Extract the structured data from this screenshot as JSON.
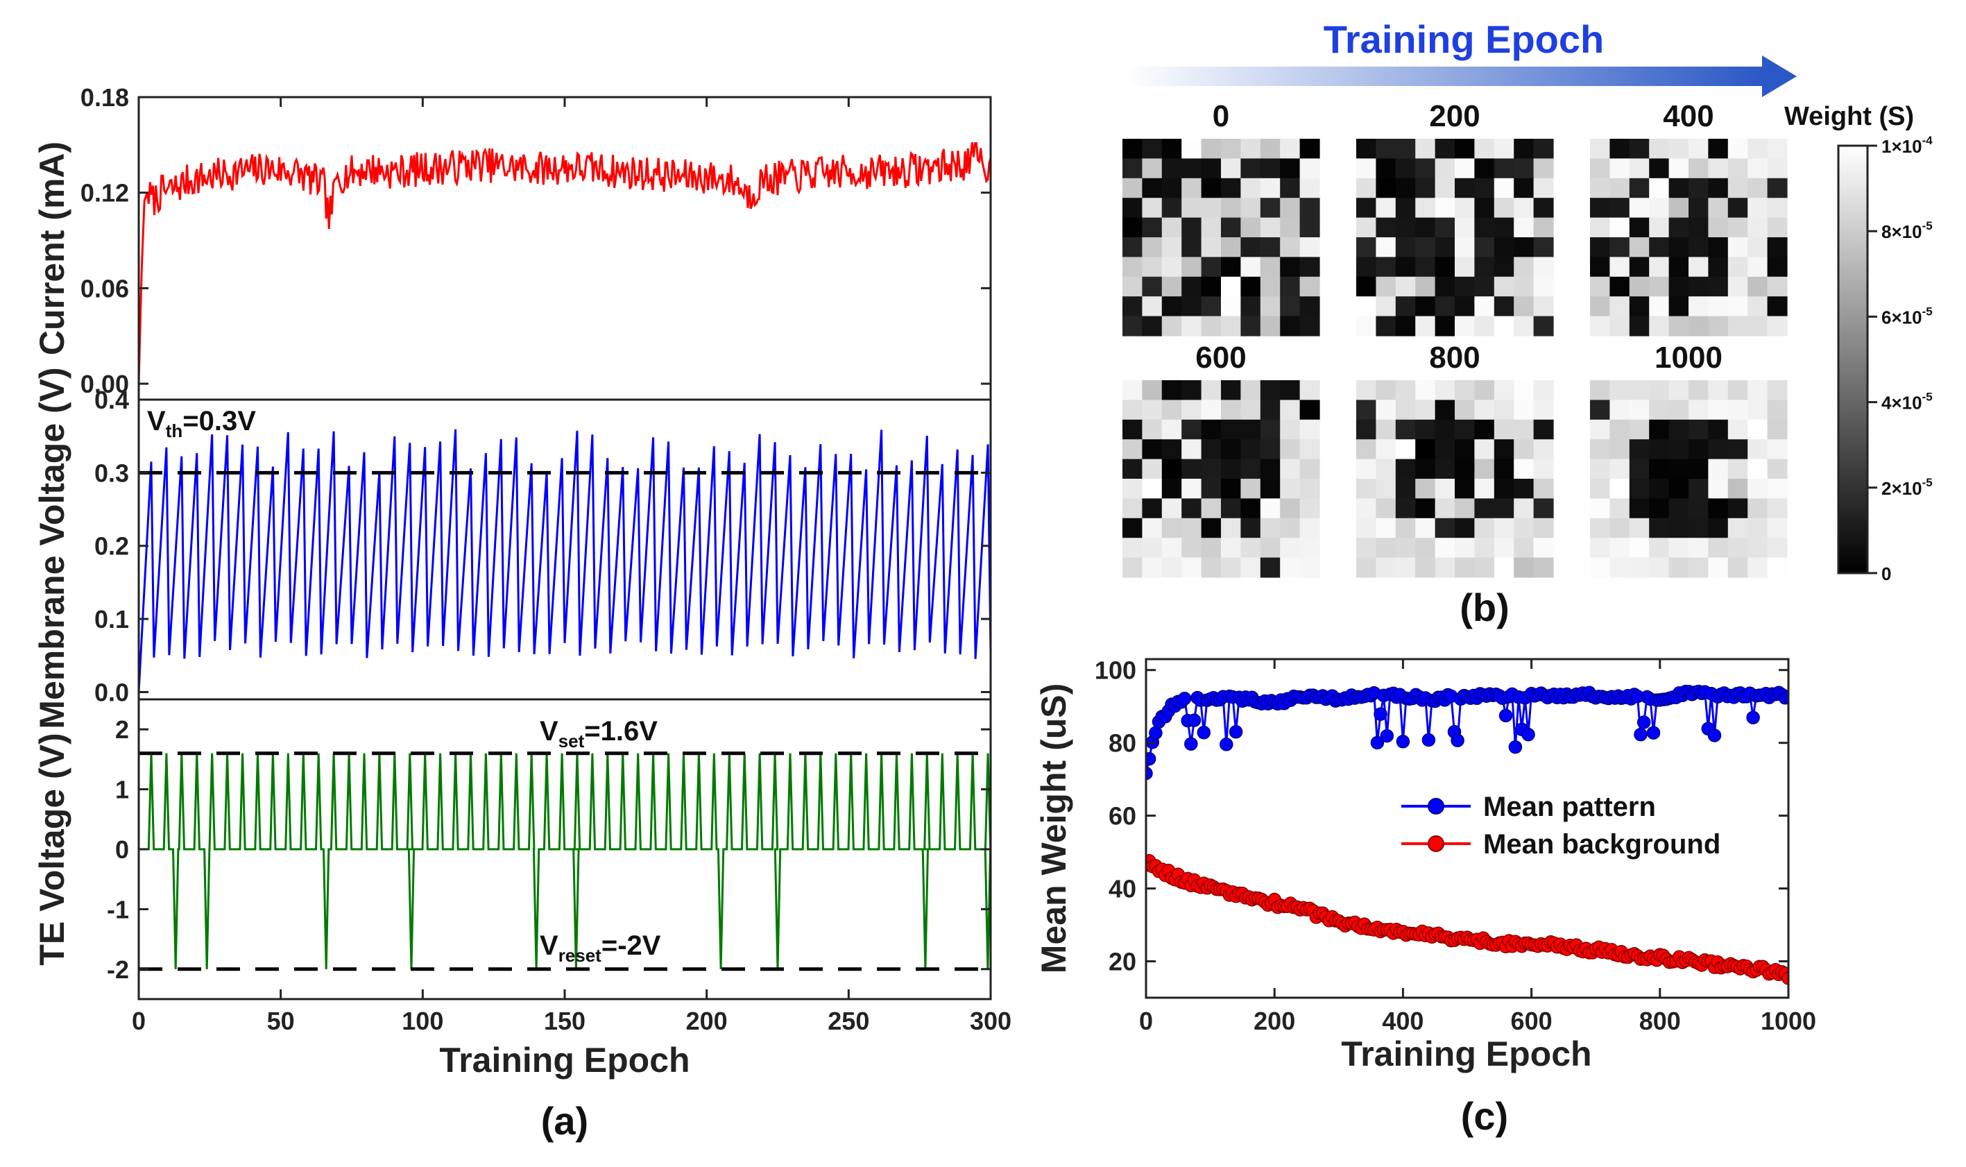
{
  "chart_data": [
    {
      "id": "a",
      "panel_label": "(a)",
      "type": "line",
      "title": "",
      "xlabel": "Training Epoch",
      "xlim": [
        0,
        300
      ],
      "xticks": [
        "0",
        "50",
        "100",
        "150",
        "200",
        "250",
        "300"
      ],
      "x_tick_values": [
        0,
        50,
        100,
        150,
        200,
        250,
        300
      ],
      "subplots": [
        {
          "name": "current",
          "ylabel": "Current (mA)",
          "ylim": [
            -0.01,
            0.18
          ],
          "yticks": [
            "0.00",
            "0.06",
            "0.12",
            "0.18"
          ],
          "y_tick_values": [
            0.0,
            0.06,
            0.12,
            0.18
          ],
          "color": "#ff0000",
          "series_description": "rises from 0 to ~0.12 within 3 epochs, then fluctuates 0.11-0.15 mA",
          "x": [
            0,
            1,
            2,
            3,
            5,
            8,
            12,
            18,
            25,
            35,
            45,
            55,
            65,
            67,
            70,
            80,
            90,
            100,
            110,
            120,
            130,
            140,
            150,
            160,
            170,
            180,
            190,
            200,
            210,
            215,
            220,
            230,
            240,
            250,
            260,
            270,
            280,
            290,
            295,
            300
          ],
          "values": [
            0.0,
            0.07,
            0.115,
            0.12,
            0.115,
            0.12,
            0.122,
            0.128,
            0.13,
            0.133,
            0.135,
            0.133,
            0.125,
            0.103,
            0.13,
            0.135,
            0.133,
            0.135,
            0.136,
            0.138,
            0.136,
            0.135,
            0.136,
            0.135,
            0.133,
            0.132,
            0.13,
            0.13,
            0.127,
            0.118,
            0.128,
            0.13,
            0.132,
            0.133,
            0.133,
            0.134,
            0.136,
            0.138,
            0.142,
            0.134
          ]
        },
        {
          "name": "membrane",
          "ylabel": "Membrane Voltage (V)",
          "ylim": [
            -0.01,
            0.4
          ],
          "yticks": [
            "0.0",
            "0.1",
            "0.2",
            "0.3",
            "0.4"
          ],
          "y_tick_values": [
            0.0,
            0.1,
            0.2,
            0.3,
            0.4
          ],
          "color": "#0000ff",
          "threshold": 0.3,
          "threshold_label_main": "V",
          "threshold_label_sub": "th",
          "threshold_label_rest": "=0.3V",
          "spike_count": 56,
          "spike_peak_range": [
            0.3,
            0.36
          ],
          "reset_trough_range": [
            0.045,
            0.07
          ]
        },
        {
          "name": "te",
          "ylabel": "TE Voltage (V)",
          "ylim": [
            -2.5,
            2.5
          ],
          "yticks": [
            "-2",
            "-1",
            "0",
            "1",
            "2"
          ],
          "y_tick_values": [
            -2,
            -1,
            0,
            1,
            2
          ],
          "color": "#007a00",
          "set_voltage": 1.6,
          "reset_voltage": -2,
          "set_label_main": "V",
          "set_label_sub": "set",
          "set_label_rest": "=1.6V",
          "reset_label_main": "V",
          "reset_label_sub": "reset",
          "reset_label_rest": "=-2V",
          "reset_pulse_epochs": [
            13,
            24,
            66,
            96,
            140,
            154,
            205,
            225,
            277,
            299
          ]
        }
      ]
    },
    {
      "id": "b",
      "panel_label": "(b)",
      "type": "heatmap",
      "header": "Training Epoch",
      "grid": "10x10",
      "epochs": [
        "0",
        "200",
        "400",
        "600",
        "800",
        "1000"
      ],
      "colorbar_title": "Weight (S)",
      "colorbar_range": [
        0,
        0.0001
      ],
      "colorbar_tick_labels": [
        {
          "mant": "1×10",
          "exp": "-4"
        },
        {
          "mant": "8×10",
          "exp": "-5"
        },
        {
          "mant": "6×10",
          "exp": "-5"
        },
        {
          "mant": "4×10",
          "exp": "-5"
        },
        {
          "mant": "2×10",
          "exp": "-5"
        },
        {
          "mant": "0",
          "exp": ""
        }
      ],
      "description": "weights evolve from random to a dark circular pattern surrounded by light background"
    },
    {
      "id": "c",
      "panel_label": "(c)",
      "type": "scatter",
      "xlabel": "Training Epoch",
      "ylabel": "Mean Weight (uS)",
      "xlim": [
        0,
        1000
      ],
      "ylim": [
        10,
        103
      ],
      "xticks": [
        "0",
        "200",
        "400",
        "600",
        "800",
        "1000"
      ],
      "x_tick_values": [
        0,
        200,
        400,
        600,
        800,
        1000
      ],
      "yticks": [
        "20",
        "40",
        "60",
        "80",
        "100"
      ],
      "y_tick_values": [
        20,
        40,
        60,
        80,
        100
      ],
      "series": [
        {
          "name": "Mean pattern",
          "color": "#0000ff",
          "x": [
            0,
            10,
            20,
            30,
            40,
            50,
            60,
            70,
            80,
            90,
            100,
            150,
            200,
            250,
            300,
            350,
            400,
            450,
            500,
            550,
            600,
            650,
            700,
            750,
            800,
            850,
            900,
            950,
            1000
          ],
          "values": [
            72,
            80,
            86,
            88,
            90,
            91,
            92,
            79,
            92,
            91,
            92,
            92,
            91,
            93,
            92,
            93,
            93,
            92,
            93,
            93,
            93,
            93,
            93,
            93,
            92,
            94,
            93,
            93,
            93
          ]
        },
        {
          "name": "Mean background",
          "color": "#ff0000",
          "x": [
            0,
            50,
            100,
            150,
            200,
            250,
            300,
            350,
            400,
            450,
            500,
            550,
            600,
            650,
            700,
            750,
            800,
            850,
            900,
            950,
            1000
          ],
          "values": [
            47,
            43,
            40,
            38,
            36,
            34,
            31,
            29,
            28,
            27,
            26,
            25,
            25,
            24,
            23,
            22,
            21,
            20,
            19,
            18,
            16
          ]
        }
      ]
    }
  ]
}
